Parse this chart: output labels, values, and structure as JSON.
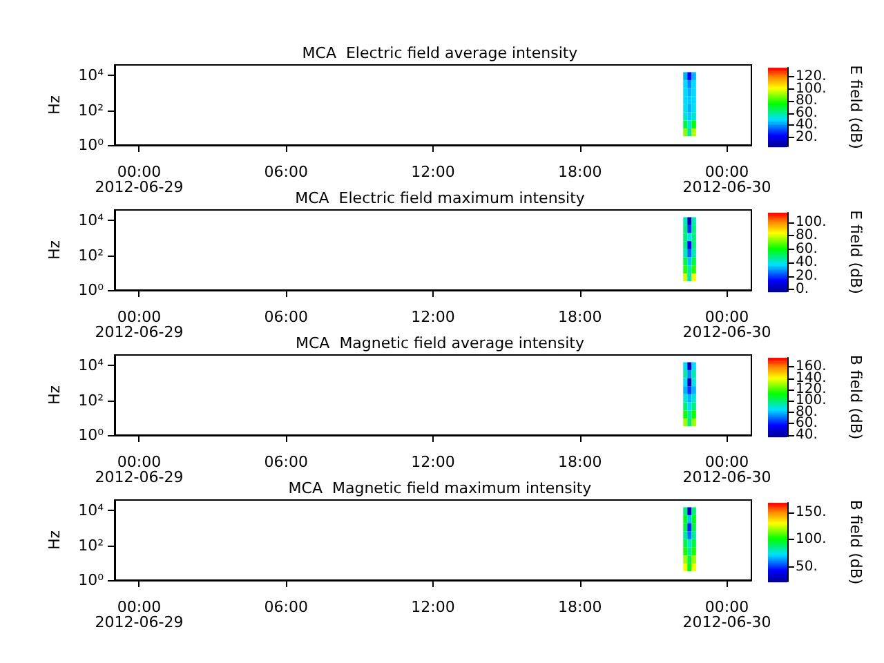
{
  "chart_data": [
    {
      "type": "heatmap",
      "title": "MCA  Electric field average intensity",
      "ylabel": "Hz",
      "clabel": "E field (dB)",
      "log": "y",
      "xlim": [
        -1,
        25
      ],
      "xticks": [
        {
          "value": 0,
          "label": "00:00\n2012-06-29"
        },
        {
          "value": 6,
          "label": "06:00"
        },
        {
          "value": 12,
          "label": "12:00"
        },
        {
          "value": 18,
          "label": "18:00"
        },
        {
          "value": 24,
          "label": "00:00\n2012-06-30"
        }
      ],
      "ylim": [
        1,
        40000
      ],
      "yticks": [
        {
          "value": 1,
          "label": "10⁰"
        },
        {
          "value": 100,
          "label": "10²"
        },
        {
          "value": 10000,
          "label": "10⁴"
        }
      ],
      "x": [
        22.3,
        22.47,
        22.65
      ],
      "y": [
        9100,
        3200,
        1100,
        380,
        130,
        45,
        15,
        5.4
      ],
      "cells": [
        [
          45,
          25,
          45
        ],
        [
          50,
          40,
          50
        ],
        [
          50,
          45,
          50
        ],
        [
          50,
          48,
          50
        ],
        [
          52,
          45,
          52
        ],
        [
          55,
          48,
          55
        ],
        [
          70,
          55,
          75
        ],
        [
          90,
          60,
          95
        ]
      ],
      "clim": [
        5,
        135
      ],
      "cticks": [
        {
          "value": 20,
          "label": "20."
        },
        {
          "value": 40,
          "label": "40."
        },
        {
          "value": 60,
          "label": "60."
        },
        {
          "value": 80,
          "label": "80."
        },
        {
          "value": 100,
          "label": "100."
        },
        {
          "value": 120,
          "label": "120."
        }
      ]
    },
    {
      "type": "heatmap",
      "title": "MCA  Electric field maximum intensity",
      "ylabel": "Hz",
      "clabel": "E field (dB)",
      "log": "y",
      "xlim": [
        -1,
        25
      ],
      "xticks": [
        {
          "value": 0,
          "label": "00:00\n2012-06-29"
        },
        {
          "value": 6,
          "label": "06:00"
        },
        {
          "value": 12,
          "label": "12:00"
        },
        {
          "value": 18,
          "label": "18:00"
        },
        {
          "value": 24,
          "label": "00:00\n2012-06-30"
        }
      ],
      "ylim": [
        1,
        40000
      ],
      "yticks": [
        {
          "value": 1,
          "label": "10⁰"
        },
        {
          "value": 100,
          "label": "10²"
        },
        {
          "value": 10000,
          "label": "10⁴"
        }
      ],
      "x": [
        22.3,
        22.47,
        22.65
      ],
      "y": [
        9100,
        3200,
        1100,
        380,
        130,
        45,
        15,
        5.4
      ],
      "cells": [
        [
          45,
          5,
          45
        ],
        [
          50,
          20,
          50
        ],
        [
          50,
          40,
          50
        ],
        [
          50,
          15,
          50
        ],
        [
          45,
          25,
          45
        ],
        [
          55,
          35,
          55
        ],
        [
          65,
          45,
          65
        ],
        [
          80,
          45,
          85
        ]
      ],
      "clim": [
        -3,
        114
      ],
      "cticks": [
        {
          "value": 0,
          "label": "0."
        },
        {
          "value": 20,
          "label": "20."
        },
        {
          "value": 40,
          "label": "40."
        },
        {
          "value": 60,
          "label": "60."
        },
        {
          "value": 80,
          "label": "80."
        },
        {
          "value": 100,
          "label": "100."
        }
      ]
    },
    {
      "type": "heatmap",
      "title": "MCA  Magnetic field average intensity",
      "ylabel": "Hz",
      "clabel": "B field (dB)",
      "log": "y",
      "xlim": [
        -1,
        25
      ],
      "xticks": [
        {
          "value": 0,
          "label": "00:00\n2012-06-29"
        },
        {
          "value": 6,
          "label": "06:00"
        },
        {
          "value": 12,
          "label": "12:00"
        },
        {
          "value": 18,
          "label": "18:00"
        },
        {
          "value": 24,
          "label": "00:00\n2012-06-30"
        }
      ],
      "ylim": [
        1,
        40000
      ],
      "yticks": [
        {
          "value": 1,
          "label": "10⁰"
        },
        {
          "value": 100,
          "label": "10²"
        },
        {
          "value": 10000,
          "label": "10⁴"
        }
      ],
      "x": [
        22.3,
        22.47,
        22.65
      ],
      "y": [
        9100,
        3200,
        1100,
        380,
        130,
        45,
        15,
        5.4
      ],
      "cells": [
        [
          85,
          45,
          85
        ],
        [
          95,
          75,
          95
        ],
        [
          85,
          45,
          90
        ],
        [
          80,
          65,
          80
        ],
        [
          90,
          80,
          90
        ],
        [
          100,
          85,
          100
        ],
        [
          115,
          95,
          115
        ],
        [
          130,
          100,
          130
        ]
      ],
      "clim": [
        37,
        176
      ],
      "cticks": [
        {
          "value": 40,
          "label": "40."
        },
        {
          "value": 60,
          "label": "60."
        },
        {
          "value": 80,
          "label": "80."
        },
        {
          "value": 100,
          "label": "100."
        },
        {
          "value": 120,
          "label": "120."
        },
        {
          "value": 140,
          "label": "140."
        },
        {
          "value": 160,
          "label": "160."
        }
      ]
    },
    {
      "type": "heatmap",
      "title": "MCA  Magnetic field maximum intensity",
      "ylabel": "Hz",
      "clabel": "B field (dB)",
      "log": "y",
      "xlim": [
        -1,
        25
      ],
      "xticks": [
        {
          "value": 0,
          "label": "00:00\n2012-06-29"
        },
        {
          "value": 6,
          "label": "06:00"
        },
        {
          "value": 12,
          "label": "12:00"
        },
        {
          "value": 18,
          "label": "18:00"
        },
        {
          "value": 24,
          "label": "00:00\n2012-06-30"
        }
      ],
      "ylim": [
        1,
        40000
      ],
      "yticks": [
        {
          "value": 1,
          "label": "10⁰"
        },
        {
          "value": 100,
          "label": "10²"
        },
        {
          "value": 10000,
          "label": "10⁴"
        }
      ],
      "x": [
        22.3,
        22.47,
        22.65
      ],
      "y": [
        9100,
        3200,
        1100,
        380,
        130,
        45,
        15,
        5.4
      ],
      "cells": [
        [
          90,
          35,
          90
        ],
        [
          100,
          70,
          100
        ],
        [
          95,
          50,
          95
        ],
        [
          85,
          60,
          85
        ],
        [
          95,
          80,
          95
        ],
        [
          105,
          85,
          105
        ],
        [
          120,
          95,
          120
        ],
        [
          130,
          100,
          130
        ]
      ],
      "clim": [
        24,
        167
      ],
      "cticks": [
        {
          "value": 50,
          "label": "50."
        },
        {
          "value": 100,
          "label": "100."
        },
        {
          "value": 150,
          "label": "150."
        }
      ]
    }
  ]
}
